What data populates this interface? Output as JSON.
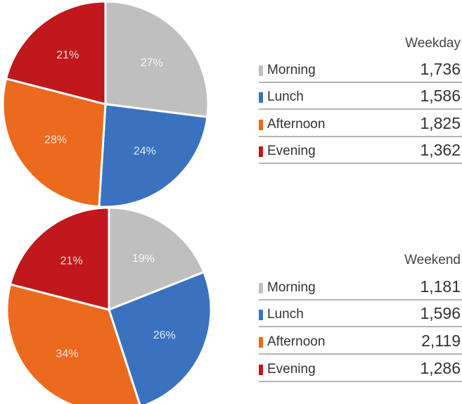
{
  "chart_data": [
    {
      "type": "pie",
      "name": "Weekday",
      "categories": [
        "Morning",
        "Lunch",
        "Afternoon",
        "Evening"
      ],
      "values": [
        27,
        24,
        28,
        21
      ],
      "counts": [
        1736,
        1586,
        1825,
        1362
      ],
      "count_labels": [
        "1,736",
        "1,586",
        "1,825",
        "1,362"
      ],
      "colors": [
        "#bfbfbf",
        "#3a72c0",
        "#ec6a1e",
        "#c0181c"
      ]
    },
    {
      "type": "pie",
      "name": "Weekend",
      "categories": [
        "Morning",
        "Lunch",
        "Afternoon",
        "Evening"
      ],
      "values": [
        19,
        26,
        34,
        21
      ],
      "counts": [
        1181,
        1596,
        2119,
        1286
      ],
      "count_labels": [
        "1,181",
        "1,596",
        "2,119",
        "1,286"
      ],
      "colors": [
        "#bfbfbf",
        "#3a72c0",
        "#ec6a1e",
        "#c0181c"
      ]
    }
  ]
}
